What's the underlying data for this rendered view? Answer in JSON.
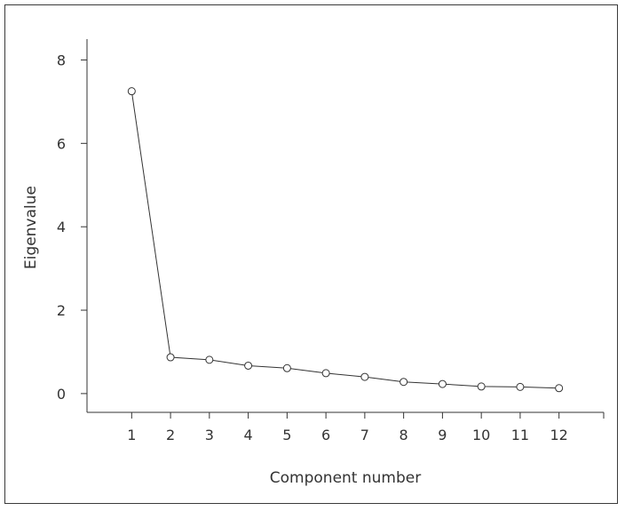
{
  "chart_data": {
    "type": "line",
    "xlabel": "Component number",
    "ylabel": "Eigenvalue",
    "x": [
      1,
      2,
      3,
      4,
      5,
      6,
      7,
      8,
      9,
      10,
      11,
      12
    ],
    "series": [
      {
        "values": [
          7.25,
          0.87,
          0.81,
          0.67,
          0.61,
          0.49,
          0.4,
          0.28,
          0.23,
          0.17,
          0.16,
          0.13
        ]
      }
    ],
    "xticks": [
      "1",
      "2",
      "3",
      "4",
      "5",
      "6",
      "7",
      "8",
      "9",
      "10",
      "11",
      "12"
    ],
    "yticks": [
      "0",
      "2",
      "4",
      "6",
      "8"
    ],
    "ylim": [
      -0.45,
      8.5
    ],
    "xlim": [
      -0.15,
      13.15
    ],
    "grid": false,
    "marker": "open-circle",
    "colors": {
      "line": "#333333",
      "marker_fill": "#ffffff",
      "axis": "#333333"
    }
  }
}
